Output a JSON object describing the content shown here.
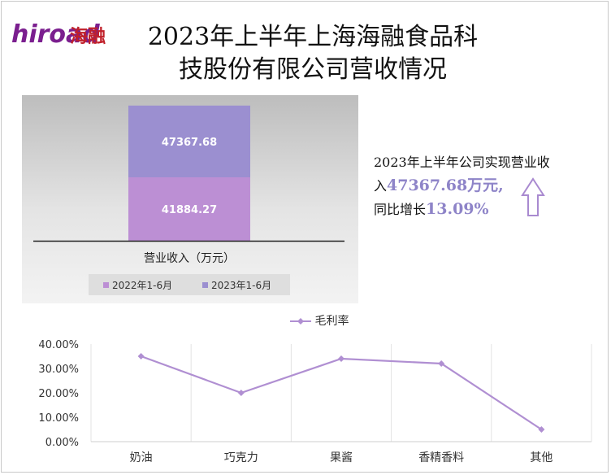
{
  "logo": {
    "brand_latin": "hiroad",
    "brand_cn": "海融"
  },
  "title_lines": [
    "2023年上半年上海海融食品科",
    "技股份有限公司营收情况"
  ],
  "summary": {
    "line1": "2023年上半年公司实现营业收",
    "prefix": "入",
    "revenue_text": "47367.68万元,",
    "growth_label": "同比增长",
    "growth_value": "13.09%"
  },
  "colors": {
    "series_2022": "#bc8fd4",
    "series_2023": "#9b8fd0",
    "line": "#b08fd2",
    "summary_accent": "#8e84c8"
  },
  "chart_data": [
    {
      "type": "bar",
      "stacked": true,
      "categories": [
        "营业收入（万元）"
      ],
      "series": [
        {
          "name": "2022年1-6月",
          "values": [
            41884.27
          ]
        },
        {
          "name": "2023年1-6月",
          "values": [
            47367.68
          ]
        }
      ],
      "legend": "bottom",
      "grid": false
    },
    {
      "type": "line",
      "categories": [
        "奶油",
        "巧克力",
        "果酱",
        "香精香料",
        "其他"
      ],
      "series": [
        {
          "name": "毛利率",
          "values": [
            0.35,
            0.2,
            0.34,
            0.32,
            0.05
          ]
        }
      ],
      "ylim": [
        0,
        0.4
      ],
      "yticks": [
        "0.00%",
        "10.00%",
        "20.00%",
        "30.00%",
        "40.00%"
      ],
      "legend": "top",
      "grid": true
    }
  ]
}
